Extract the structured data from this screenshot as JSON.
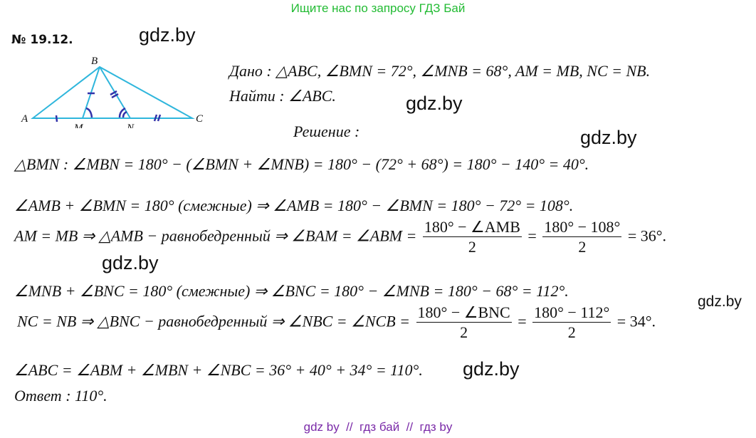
{
  "header": {
    "banner": "Ищите нас по запросу ГДЗ Бай",
    "banner_color": "#22bb33"
  },
  "problem_number": "№ 19.12.",
  "watermarks": [
    "gdz.by",
    "gdz.by",
    "gdz.by",
    "gdz.by",
    "gdz.by",
    "gdz.by"
  ],
  "figure": {
    "labels": {
      "A": "A",
      "B": "B",
      "C": "C",
      "M": "M",
      "N": "N"
    },
    "line_color": "#2fb6dc",
    "mark_color": "#3333aa"
  },
  "given": "Дано :  △ABC,   ∠BMN = 72°,   ∠MNB = 68°,   AM = MB,   NC = NB.",
  "find": "Найти :   ∠ABC.",
  "solution_heading": "Решение :",
  "lines": {
    "l1": "△BMN :      ∠MBN = 180° − (∠BMN + ∠MNB) = 180° − (72° + 68°) = 180° − 140° = 40°.",
    "l2": "∠AMB + ∠BMN = 180°    (смежные)    ⇒   ∠AMB = 180° − ∠BMN = 180° − 72° = 108°.",
    "l3_pre": "AM = MB    ⇒   △AMB − равнобедренный    ⇒   ∠BAM = ∠ABM =",
    "l3_f1_num": "180° − ∠AMB",
    "l3_f1_den": "2",
    "l3_eq": "=",
    "l3_f2_num": "180° − 108°",
    "l3_f2_den": "2",
    "l3_end": "= 36°.",
    "l4": "∠MNB + ∠BNC = 180°    (смежные)    ⇒   ∠BNC = 180° − ∠MNB = 180° − 68° = 112°.",
    "l5_pre": "NC = NB    ⇒   △BNC − равнобедренный    ⇒   ∠NBC = ∠NCB =",
    "l5_f1_num": "180° − ∠BNC",
    "l5_f1_den": "2",
    "l5_eq": "=",
    "l5_f2_num": "180° − 112°",
    "l5_f2_den": "2",
    "l5_end": "= 34°.",
    "l6": "∠ABC = ∠ABM + ∠MBN + ∠NBC = 36° + 40° + 34° = 110°.",
    "answer": "Ответ :   110°."
  },
  "footer": {
    "text": "gdz by  //  гдз бай  //  гдз by",
    "color": "#7a2aa8"
  }
}
